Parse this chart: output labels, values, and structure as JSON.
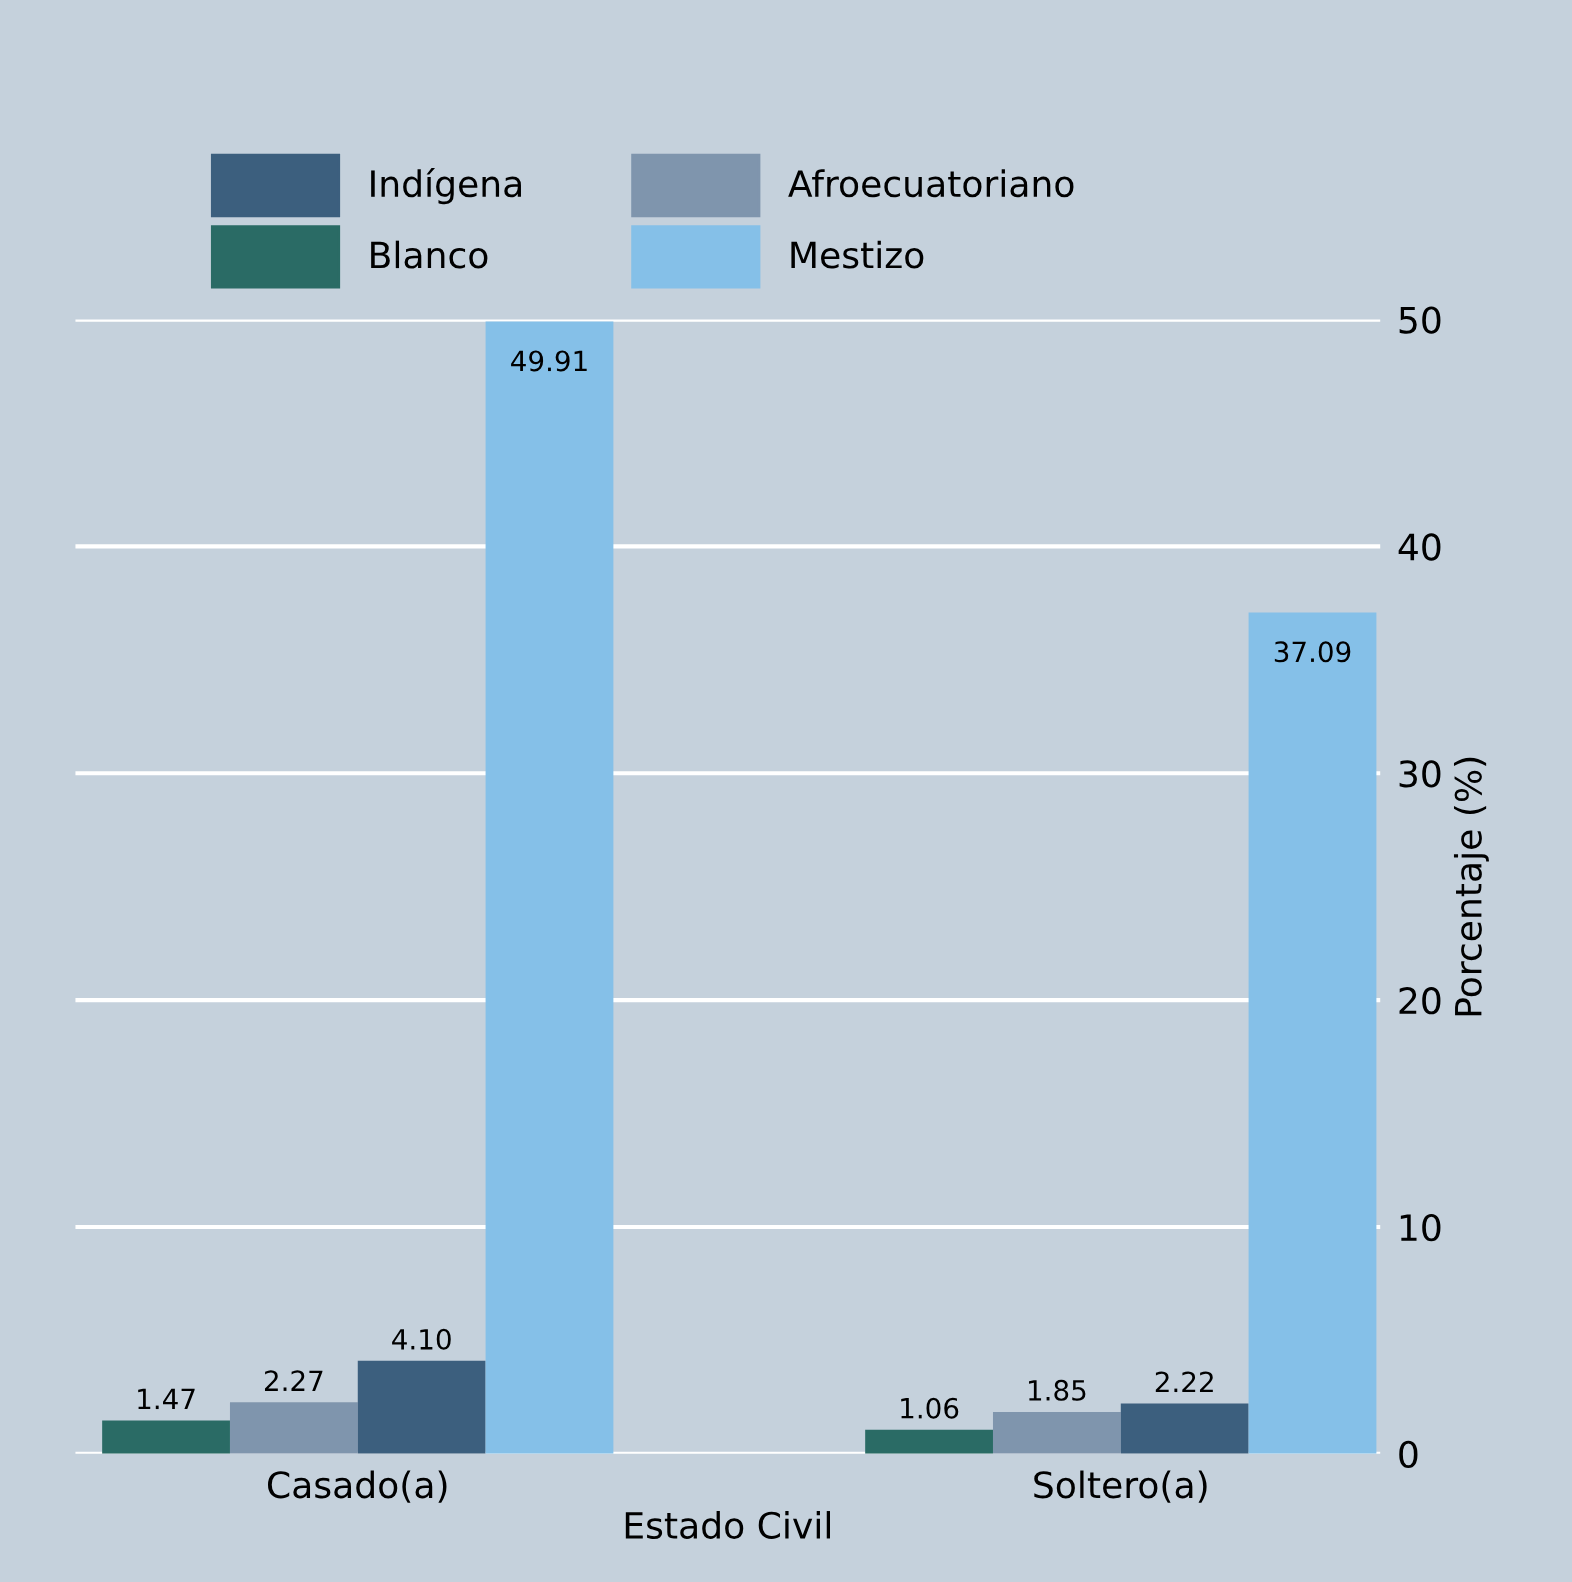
{
  "chart_data": {
    "type": "bar",
    "xlabel": "Estado Civil",
    "ylabel": "Porcentaje (%)",
    "categories": [
      "Casado(a)",
      "Soltero(a)"
    ],
    "series": [
      {
        "name": "Blanco",
        "color": "#2a6b65",
        "values": [
          1.47,
          1.06
        ],
        "value_labels": [
          "1.47",
          "1.06"
        ]
      },
      {
        "name": "Afroecuatoriano",
        "color": "#7f95ad",
        "values": [
          2.27,
          1.85
        ],
        "value_labels": [
          "2.27",
          "1.85"
        ]
      },
      {
        "name": "Indígena",
        "color": "#3c5f7e",
        "values": [
          4.1,
          2.22
        ],
        "value_labels": [
          "4.10",
          "2.22"
        ]
      },
      {
        "name": "Mestizo",
        "color": "#85c0e8",
        "values": [
          49.91,
          37.09
        ],
        "value_labels": [
          "49.91",
          "37.09"
        ]
      }
    ],
    "ylim": [
      0,
      50
    ],
    "yticks": [
      0,
      10,
      20,
      30,
      40,
      50
    ],
    "grid": "y",
    "legend": "top left"
  }
}
